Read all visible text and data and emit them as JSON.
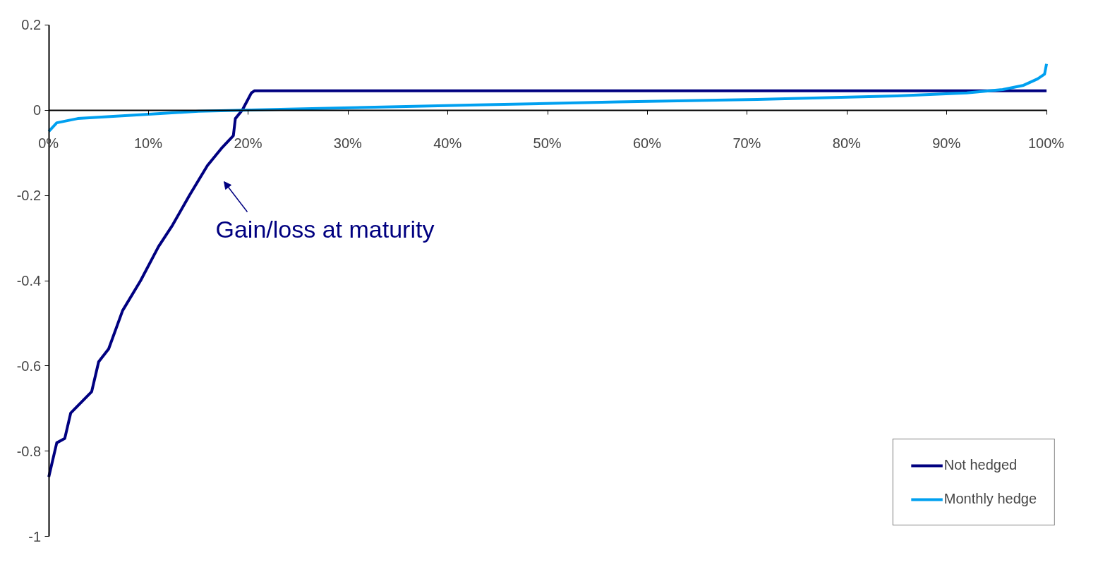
{
  "chart_data": {
    "type": "line",
    "xlim": [
      0,
      100
    ],
    "xticks": [
      {
        "value": 0,
        "label": "0%"
      },
      {
        "value": 10,
        "label": "10%"
      },
      {
        "value": 20,
        "label": "20%"
      },
      {
        "value": 30,
        "label": "30%"
      },
      {
        "value": 40,
        "label": "40%"
      },
      {
        "value": 50,
        "label": "50%"
      },
      {
        "value": 60,
        "label": "60%"
      },
      {
        "value": 70,
        "label": "70%"
      },
      {
        "value": 80,
        "label": "80%"
      },
      {
        "value": 90,
        "label": "90%"
      },
      {
        "value": 100,
        "label": "100%"
      }
    ],
    "ylim": [
      -1,
      0.2
    ],
    "yticks": [
      -1,
      -0.8,
      -0.6,
      -0.4,
      -0.2,
      0,
      0.2
    ],
    "grid": false,
    "legend": "bottom right",
    "marker": "none",
    "line_style": "solid",
    "series": [
      {
        "name": "Not hedged",
        "color": "#000080",
        "x": [
          0,
          0.8,
          1.6,
          2.2,
          4.3,
          5,
          6,
          7.4,
          9.2,
          11,
          12.4,
          14.1,
          15.9,
          17.3,
          18.5,
          18.7,
          19.4,
          20.3,
          20.6,
          100
        ],
        "values": [
          -0.86,
          -0.78,
          -0.77,
          -0.71,
          -0.66,
          -0.59,
          -0.56,
          -0.47,
          -0.4,
          -0.32,
          -0.27,
          -0.2,
          -0.13,
          -0.09,
          -0.06,
          -0.02,
          0,
          0.04,
          0.045,
          0.045
        ]
      },
      {
        "name": "Monthly hedge",
        "color": "#00a0f0",
        "x": [
          0,
          0.8,
          2.9,
          10,
          15,
          24,
          43,
          57,
          71,
          85,
          92,
          95.6,
          97.7,
          99.1,
          99.8,
          100
        ],
        "values": [
          -0.05,
          -0.03,
          -0.02,
          -0.01,
          -0.003,
          0.002,
          0.012,
          0.019,
          0.025,
          0.033,
          0.04,
          0.048,
          0.058,
          0.073,
          0.084,
          0.108
        ]
      }
    ],
    "annotations": [
      "Gain/loss at maturity"
    ]
  }
}
